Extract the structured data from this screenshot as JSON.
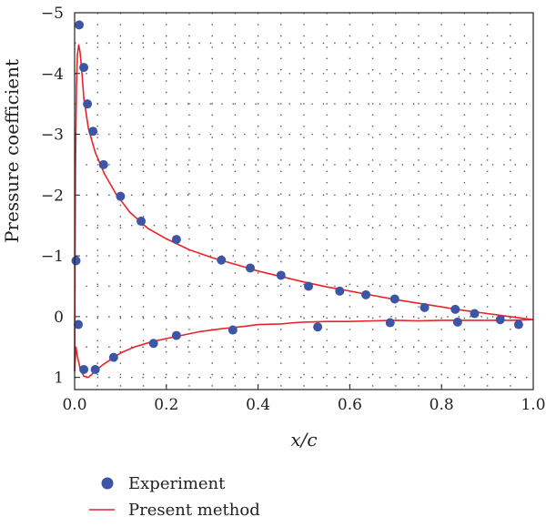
{
  "chart_data": {
    "type": "scatter",
    "xlabel": "x/c",
    "ylabel": "Pressure coefficient",
    "xlim": [
      0,
      1.0
    ],
    "ylim": [
      -5,
      1.2
    ],
    "y_inverted": true,
    "grid": "dotted",
    "legend_position": "bottom-left",
    "x_ticks": [
      "0.0",
      "0.2",
      "0.4",
      "0.6",
      "0.8",
      "1.0"
    ],
    "x_tick_values": [
      0,
      0.2,
      0.4,
      0.6,
      0.8,
      1.0
    ],
    "y_ticks": [
      "−5",
      "−4",
      "−3",
      "−2",
      "−1",
      "0",
      "1"
    ],
    "y_tick_values": [
      -5,
      -4,
      -3,
      -2,
      -1,
      0,
      1
    ],
    "series": [
      {
        "name": "Experiment",
        "kind": "scatter",
        "color": "#3d55a5",
        "points": [
          [
            0.01,
            -4.8
          ],
          [
            0.02,
            -4.1
          ],
          [
            0.028,
            -3.5
          ],
          [
            0.04,
            -3.05
          ],
          [
            0.063,
            -2.5
          ],
          [
            0.1,
            -1.98
          ],
          [
            0.145,
            -1.57
          ],
          [
            0.222,
            -1.27
          ],
          [
            0.32,
            -0.93
          ],
          [
            0.383,
            -0.8
          ],
          [
            0.45,
            -0.68
          ],
          [
            0.51,
            -0.5
          ],
          [
            0.578,
            -0.42
          ],
          [
            0.635,
            -0.36
          ],
          [
            0.698,
            -0.29
          ],
          [
            0.763,
            -0.15
          ],
          [
            0.83,
            -0.12
          ],
          [
            0.872,
            -0.05
          ],
          [
            0.928,
            0.05
          ],
          [
            0.968,
            0.13
          ],
          [
            0.003,
            -0.92
          ],
          [
            0.008,
            0.13
          ],
          [
            0.02,
            0.87
          ],
          [
            0.045,
            0.87
          ],
          [
            0.085,
            0.67
          ],
          [
            0.172,
            0.44
          ],
          [
            0.222,
            0.31
          ],
          [
            0.345,
            0.22
          ],
          [
            0.53,
            0.17
          ],
          [
            0.688,
            0.1
          ],
          [
            0.835,
            0.09
          ]
        ]
      },
      {
        "name": "Present method",
        "kind": "line",
        "color": "#e8242a",
        "points": [
          [
            0.0,
            0.9
          ],
          [
            0.001,
            -1.0
          ],
          [
            0.002,
            -2.5
          ],
          [
            0.004,
            -3.8
          ],
          [
            0.006,
            -4.3
          ],
          [
            0.009,
            -4.47
          ],
          [
            0.012,
            -4.35
          ],
          [
            0.016,
            -4.0
          ],
          [
            0.02,
            -3.6
          ],
          [
            0.03,
            -3.1
          ],
          [
            0.045,
            -2.7
          ],
          [
            0.065,
            -2.35
          ],
          [
            0.09,
            -2.02
          ],
          [
            0.12,
            -1.72
          ],
          [
            0.16,
            -1.45
          ],
          [
            0.2,
            -1.28
          ],
          [
            0.25,
            -1.1
          ],
          [
            0.3,
            -0.97
          ],
          [
            0.35,
            -0.86
          ],
          [
            0.4,
            -0.75
          ],
          [
            0.45,
            -0.66
          ],
          [
            0.5,
            -0.57
          ],
          [
            0.55,
            -0.49
          ],
          [
            0.6,
            -0.42
          ],
          [
            0.65,
            -0.35
          ],
          [
            0.7,
            -0.28
          ],
          [
            0.75,
            -0.22
          ],
          [
            0.8,
            -0.16
          ],
          [
            0.85,
            -0.1
          ],
          [
            0.9,
            -0.05
          ],
          [
            0.95,
            0.0
          ],
          [
            1.0,
            0.05
          ]
        ]
      },
      {
        "kind": "line",
        "color": "#e8242a",
        "points": [
          [
            0.0,
            0.9
          ],
          [
            0.003,
            0.5
          ],
          [
            0.006,
            0.65
          ],
          [
            0.012,
            0.85
          ],
          [
            0.02,
            0.98
          ],
          [
            0.03,
            1.0
          ],
          [
            0.045,
            0.9
          ],
          [
            0.06,
            0.8
          ],
          [
            0.08,
            0.7
          ],
          [
            0.1,
            0.6
          ],
          [
            0.13,
            0.5
          ],
          [
            0.17,
            0.41
          ],
          [
            0.22,
            0.33
          ],
          [
            0.27,
            0.25
          ],
          [
            0.32,
            0.2
          ],
          [
            0.37,
            0.16
          ],
          [
            0.4,
            0.13
          ],
          [
            0.45,
            0.12
          ],
          [
            0.48,
            0.1
          ],
          [
            0.5,
            0.09
          ],
          [
            0.55,
            0.08
          ],
          [
            0.6,
            0.08
          ],
          [
            0.65,
            0.07
          ],
          [
            0.7,
            0.06
          ],
          [
            0.75,
            0.07
          ],
          [
            0.8,
            0.06
          ],
          [
            0.85,
            0.06
          ],
          [
            0.9,
            0.06
          ],
          [
            0.95,
            0.06
          ],
          [
            1.0,
            0.05
          ]
        ]
      }
    ]
  },
  "legend": {
    "experiment_label": "Experiment",
    "present_label": "Present method"
  }
}
